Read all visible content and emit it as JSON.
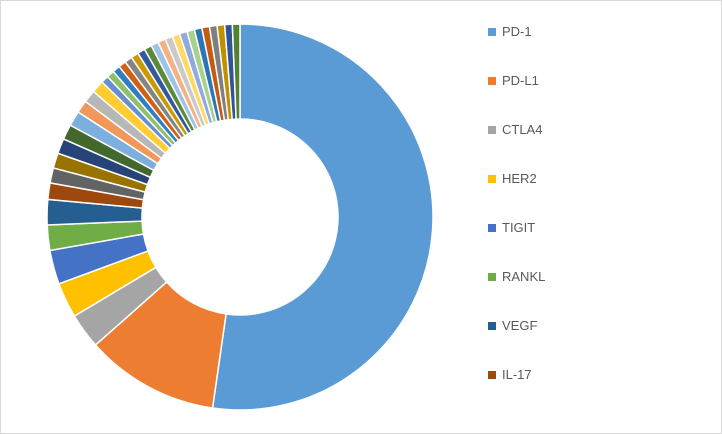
{
  "chart_data": {
    "type": "pie",
    "style": "donut",
    "legend_position": "right",
    "legend": [
      {
        "label": "PD-1",
        "color": "#5B9BD5"
      },
      {
        "label": "PD-L1",
        "color": "#ED7D31"
      },
      {
        "label": "CTLA4",
        "color": "#A5A5A5"
      },
      {
        "label": "HER2",
        "color": "#FFC000"
      },
      {
        "label": "TIGIT",
        "color": "#4472C4"
      },
      {
        "label": "RANKL",
        "color": "#70AD47"
      },
      {
        "label": "VEGF",
        "color": "#255E91"
      },
      {
        "label": "IL-17",
        "color": "#9E480E"
      }
    ],
    "palette": [
      "#5B9BD5",
      "#ED7D31",
      "#A5A5A5",
      "#FFC000",
      "#4472C4",
      "#70AD47",
      "#255E91",
      "#9E480E",
      "#636363",
      "#997300",
      "#264478",
      "#43682B",
      "#7CAFDD",
      "#F1975A",
      "#B7B7B7",
      "#FFCD33",
      "#698ED0",
      "#8CC168",
      "#327DC2",
      "#D26012",
      "#848484",
      "#CC9A00",
      "#335AA1",
      "#5A8A39",
      "#9DC3E6",
      "#F4B183",
      "#C9C9C9",
      "#FFD966",
      "#8FAADC",
      "#A9D18E",
      "#2E75B6",
      "#C55A11",
      "#7F7F7F",
      "#BF9000",
      "#2F5597",
      "#548235"
    ],
    "values": [
      49.5,
      10.6,
      2.8,
      2.8,
      2.7,
      2.0,
      2.0,
      1.3,
      1.2,
      1.2,
      1.2,
      1.2,
      1.2,
      1.0,
      1.0,
      1.0,
      0.6,
      0.6,
      0.6,
      0.6,
      0.6,
      0.6,
      0.6,
      0.6,
      0.6,
      0.6,
      0.6,
      0.6,
      0.6,
      0.6,
      0.6,
      0.6,
      0.6,
      0.6,
      0.6,
      0.6
    ]
  }
}
